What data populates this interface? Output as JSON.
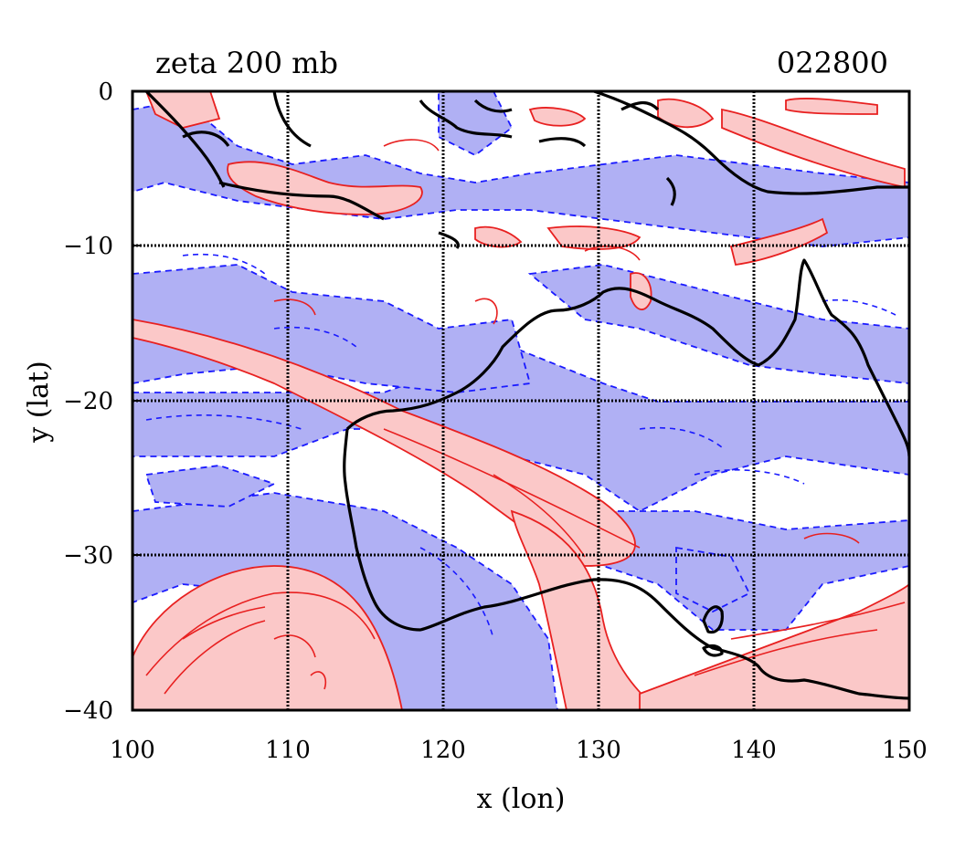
{
  "chart_data": {
    "type": "map",
    "title": "zeta 200 mb",
    "timestamp": "022800",
    "xlabel": "x (lon)",
    "ylabel": "y (lat)",
    "xlim": [
      100,
      150
    ],
    "ylim": [
      -40,
      0
    ],
    "x_ticks": [
      "100",
      "110",
      "120",
      "130",
      "140",
      "150"
    ],
    "y_ticks": [
      "0",
      "−10",
      "−20",
      "−30",
      "−40"
    ],
    "grid": true,
    "colors": {
      "positive_fill": "#fbc8c8",
      "positive_line": "#e82020",
      "negative_fill": "#b0b0f4",
      "negative_line": "#1a1aff",
      "coast": "#000000",
      "grid": "#000000"
    }
  }
}
